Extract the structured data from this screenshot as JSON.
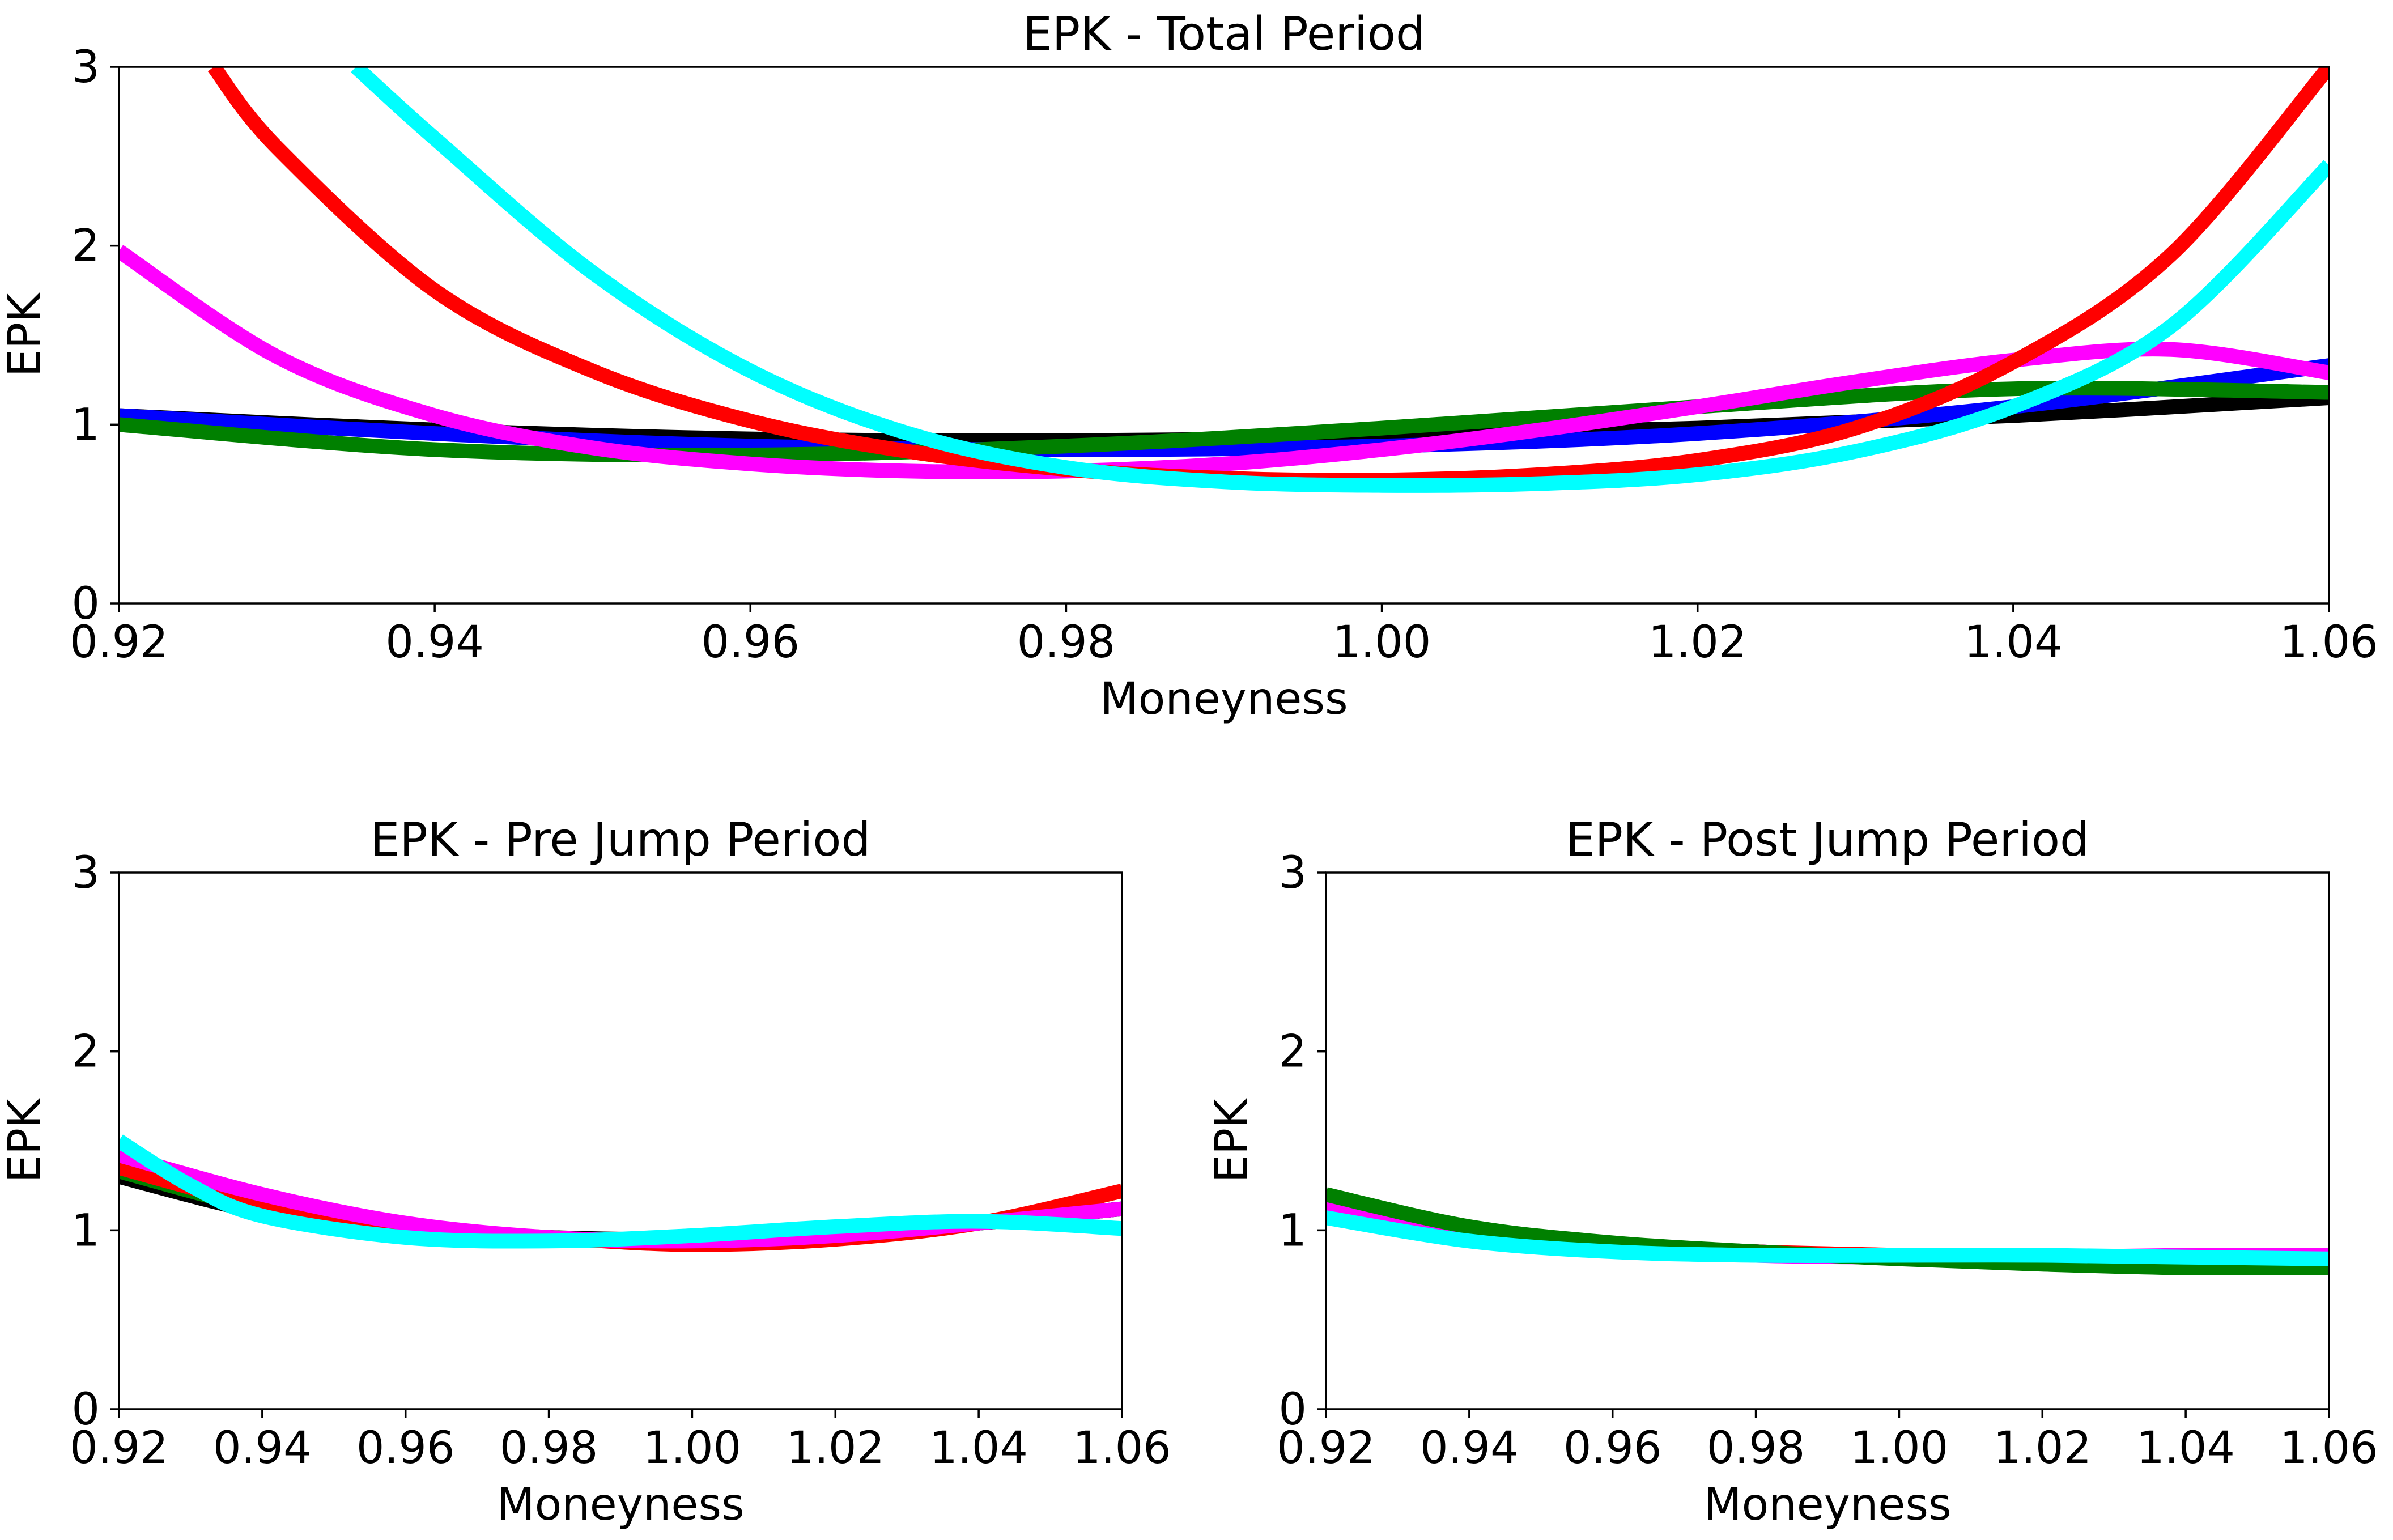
{
  "chart_data": [
    {
      "type": "line",
      "title": "EPK - Total Period",
      "xlabel": "Moneyness",
      "ylabel": "EPK",
      "xlim": [
        0.92,
        1.06
      ],
      "ylim": [
        0,
        3
      ],
      "xticks": [
        "0.92",
        "0.94",
        "0.96",
        "0.98",
        "1.00",
        "1.02",
        "1.04",
        "1.06"
      ],
      "yticks": [
        "0",
        "1",
        "2",
        "3"
      ],
      "grid": false,
      "series": [
        {
          "color": "#000000",
          "x": [
            0.92,
            0.94,
            0.96,
            0.98,
            1.0,
            1.02,
            1.04,
            1.06
          ],
          "y": [
            1.05,
            0.97,
            0.92,
            0.91,
            0.93,
            0.98,
            1.05,
            1.15
          ]
        },
        {
          "color": "#0000ff",
          "x": [
            0.92,
            0.94,
            0.96,
            0.98,
            1.0,
            1.02,
            1.04,
            1.06
          ],
          "y": [
            1.05,
            0.95,
            0.88,
            0.86,
            0.88,
            0.95,
            1.1,
            1.33
          ]
        },
        {
          "color": "#008000",
          "x": [
            0.92,
            0.94,
            0.96,
            0.98,
            1.0,
            1.02,
            1.04,
            1.06
          ],
          "y": [
            1.0,
            0.86,
            0.83,
            0.88,
            0.98,
            1.1,
            1.2,
            1.18
          ]
        },
        {
          "color": "#ff00ff",
          "x": [
            0.92,
            0.93,
            0.94,
            0.95,
            0.96,
            0.97,
            0.98,
            0.99,
            1.0,
            1.01,
            1.02,
            1.03,
            1.04,
            1.05,
            1.06
          ],
          "y": [
            1.97,
            1.38,
            1.05,
            0.87,
            0.78,
            0.74,
            0.74,
            0.78,
            0.86,
            0.97,
            1.1,
            1.24,
            1.36,
            1.42,
            1.29
          ]
        },
        {
          "color": "#ff0000",
          "x": [
            0.926,
            0.93,
            0.94,
            0.95,
            0.96,
            0.97,
            0.98,
            0.99,
            1.0,
            1.01,
            1.02,
            1.03,
            1.04,
            1.05,
            1.06
          ],
          "y": [
            3.0,
            2.55,
            1.75,
            1.3,
            1.02,
            0.85,
            0.75,
            0.7,
            0.69,
            0.72,
            0.8,
            0.98,
            1.35,
            1.95,
            3.0
          ]
        },
        {
          "color": "#00ffff",
          "x": [
            0.935,
            0.94,
            0.95,
            0.96,
            0.97,
            0.98,
            0.99,
            1.0,
            1.01,
            1.02,
            1.03,
            1.04,
            1.05,
            1.06
          ],
          "y": [
            3.0,
            2.6,
            1.85,
            1.3,
            0.95,
            0.76,
            0.68,
            0.66,
            0.67,
            0.72,
            0.85,
            1.1,
            1.55,
            2.45
          ]
        }
      ]
    },
    {
      "type": "line",
      "title": "EPK - Pre Jump Period",
      "xlabel": "Moneyness",
      "ylabel": "EPK",
      "xlim": [
        0.92,
        1.06
      ],
      "ylim": [
        0,
        3
      ],
      "xticks": [
        "0.92",
        "0.94",
        "0.96",
        "0.98",
        "1.00",
        "1.02",
        "1.04",
        "1.06"
      ],
      "yticks": [
        "0",
        "1",
        "2",
        "3"
      ],
      "grid": false,
      "series": [
        {
          "color": "#000000",
          "x": [
            0.92,
            0.94,
            0.96,
            0.98,
            1.0,
            1.02,
            1.04,
            1.06
          ],
          "y": [
            1.3,
            1.1,
            1.0,
            0.96,
            0.95,
            0.98,
            1.04,
            1.12
          ]
        },
        {
          "color": "#0000ff",
          "x": [
            0.92,
            0.94,
            0.96,
            0.98,
            1.0,
            1.02,
            1.04,
            1.06
          ],
          "y": [
            1.35,
            1.12,
            1.0,
            0.95,
            0.94,
            0.97,
            1.04,
            1.12
          ]
        },
        {
          "color": "#008000",
          "x": [
            0.92,
            0.94,
            0.96,
            0.98,
            1.0,
            1.02,
            1.04,
            1.06
          ],
          "y": [
            1.33,
            1.12,
            1.0,
            0.95,
            0.95,
            0.98,
            1.04,
            1.12
          ]
        },
        {
          "color": "#ff0000",
          "x": [
            0.92,
            0.94,
            0.96,
            0.98,
            1.0,
            1.02,
            1.04,
            1.06
          ],
          "y": [
            1.35,
            1.14,
            1.02,
            0.96,
            0.92,
            0.95,
            1.04,
            1.22
          ]
        },
        {
          "color": "#ff00ff",
          "x": [
            0.92,
            0.94,
            0.96,
            0.98,
            1.0,
            1.02,
            1.04,
            1.06
          ],
          "y": [
            1.42,
            1.2,
            1.04,
            0.96,
            0.94,
            0.97,
            1.04,
            1.12
          ]
        },
        {
          "color": "#00ffff",
          "x": [
            0.92,
            0.93,
            0.94,
            0.96,
            0.98,
            1.0,
            1.02,
            1.04,
            1.06
          ],
          "y": [
            1.5,
            1.25,
            1.08,
            0.96,
            0.94,
            0.97,
            1.02,
            1.05,
            1.01
          ]
        }
      ]
    },
    {
      "type": "line",
      "title": "EPK - Post Jump Period",
      "xlabel": "Moneyness",
      "ylabel": "EPK",
      "xlim": [
        0.92,
        1.06
      ],
      "ylim": [
        0,
        3
      ],
      "xticks": [
        "0.92",
        "0.94",
        "0.96",
        "0.98",
        "1.00",
        "1.02",
        "1.04",
        "1.06"
      ],
      "yticks": [
        "0",
        "1",
        "2",
        "3"
      ],
      "grid": false,
      "series": [
        {
          "color": "#000000",
          "x": [
            0.92,
            0.94,
            0.96,
            0.98,
            1.0,
            1.02,
            1.04,
            1.06
          ],
          "y": [
            1.15,
            1.0,
            0.92,
            0.88,
            0.85,
            0.83,
            0.81,
            0.8
          ]
        },
        {
          "color": "#0000ff",
          "x": [
            0.92,
            0.94,
            0.96,
            0.98,
            1.0,
            1.02,
            1.04,
            1.06
          ],
          "y": [
            1.15,
            1.0,
            0.92,
            0.88,
            0.85,
            0.83,
            0.81,
            0.8
          ]
        },
        {
          "color": "#ff0000",
          "x": [
            0.92,
            0.94,
            0.96,
            0.98,
            1.0,
            1.02,
            1.04,
            1.06
          ],
          "y": [
            1.13,
            1.0,
            0.92,
            0.88,
            0.86,
            0.84,
            0.81,
            0.79
          ]
        },
        {
          "color": "#ff00ff",
          "x": [
            0.92,
            0.94,
            0.96,
            0.98,
            1.0,
            1.02,
            1.04,
            1.06
          ],
          "y": [
            1.12,
            0.97,
            0.9,
            0.86,
            0.85,
            0.85,
            0.86,
            0.86
          ]
        },
        {
          "color": "#008000",
          "x": [
            0.92,
            0.94,
            0.96,
            0.98,
            1.0,
            1.02,
            1.04,
            1.06
          ],
          "y": [
            1.2,
            1.02,
            0.93,
            0.88,
            0.84,
            0.81,
            0.79,
            0.79
          ]
        },
        {
          "color": "#00ffff",
          "x": [
            0.92,
            0.94,
            0.96,
            0.98,
            1.0,
            1.02,
            1.04,
            1.06
          ],
          "y": [
            1.07,
            0.94,
            0.88,
            0.86,
            0.86,
            0.86,
            0.85,
            0.84
          ]
        }
      ]
    }
  ]
}
